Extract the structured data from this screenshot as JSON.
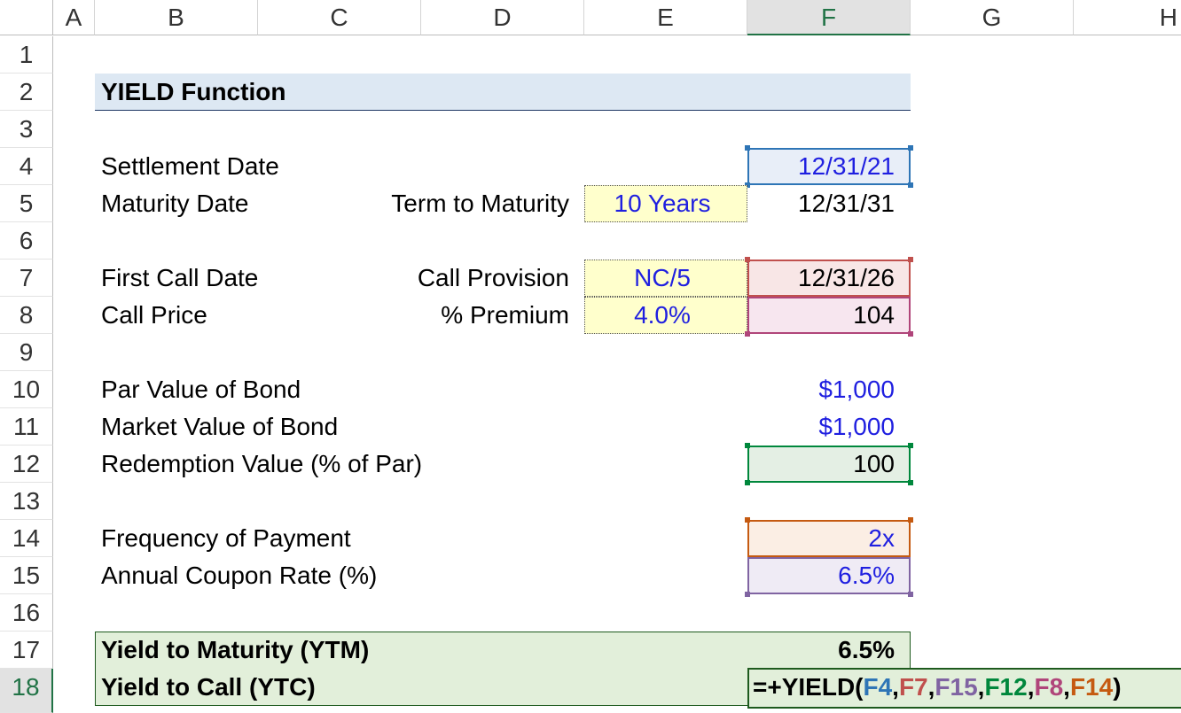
{
  "columns": [
    "A",
    "B",
    "C",
    "D",
    "E",
    "F",
    "G",
    "H"
  ],
  "rows": [
    "1",
    "2",
    "3",
    "4",
    "5",
    "6",
    "7",
    "8",
    "9",
    "10",
    "11",
    "12",
    "13",
    "14",
    "15",
    "16",
    "17",
    "18"
  ],
  "title": "YIELD Function",
  "labels": {
    "settlement_date": "Settlement Date",
    "maturity_date": "Maturity Date",
    "term_to_maturity": "Term to Maturity",
    "first_call_date": "First Call Date",
    "call_provision": "Call Provision",
    "call_price": "Call Price",
    "premium": "% Premium",
    "par_value": "Par Value of Bond",
    "market_value": "Market Value of Bond",
    "redemption_value": "Redemption Value (% of Par)",
    "frequency": "Frequency of Payment",
    "coupon_rate": "Annual Coupon Rate (%)",
    "ytm": "Yield to Maturity (YTM)",
    "ytc": "Yield to Call (YTC)"
  },
  "values": {
    "settlement_date": "12/31/21",
    "term": "10 Years",
    "maturity_date": "12/31/31",
    "call_provision": "NC/5",
    "first_call_date": "12/31/26",
    "premium": "4.0%",
    "call_price": "104",
    "par_value": "$1,000",
    "market_value": "$1,000",
    "redemption_value": "100",
    "frequency": "2x",
    "coupon_rate": "6.5%",
    "ytm": "6.5%"
  },
  "formula": {
    "prefix": "=+YIELD(",
    "arg1": "F4",
    "arg2": "F7",
    "arg3": "F15",
    "arg4": "F12",
    "arg5": "F8",
    "arg6": "F14",
    "comma": ",",
    "suffix": ")"
  },
  "colors": {
    "arg1": "#2e75b6",
    "arg2": "#c0504d",
    "arg3": "#8064a2",
    "arg4": "#00873c",
    "arg5": "#b0457a",
    "arg6": "#c55a11",
    "accent": "#217346"
  }
}
